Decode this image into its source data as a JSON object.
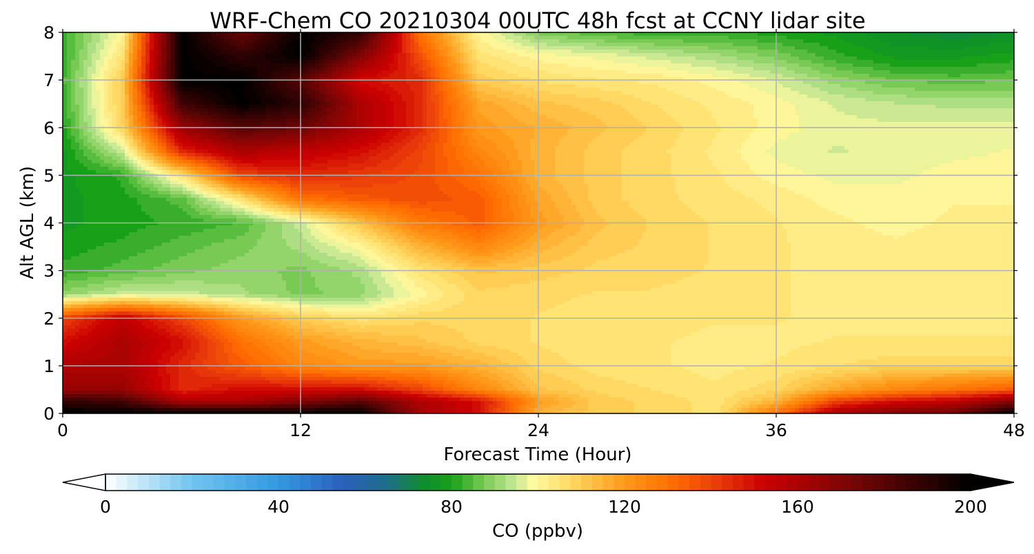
{
  "chart_data": {
    "type": "heatmap",
    "title": "WRF-Chem CO  20210304 00UTC 48h fcst at CCNY lidar site",
    "xlabel": "Forecast Time (Hour)",
    "ylabel": "Alt AGL (km)",
    "xlim": [
      0,
      48
    ],
    "ylim": [
      0,
      8
    ],
    "x_ticks": [
      "0",
      "12",
      "24",
      "36",
      "48"
    ],
    "y_ticks": [
      "0",
      "1",
      "2",
      "3",
      "4",
      "5",
      "6",
      "7",
      "8"
    ],
    "grid": true,
    "grid_x": [
      0,
      3,
      6,
      9,
      12,
      15,
      18,
      21,
      24,
      27,
      30,
      33,
      36,
      39,
      42,
      45,
      48
    ],
    "grid_y": [
      0,
      0.25,
      0.5,
      1,
      1.5,
      2,
      2.5,
      3,
      3.5,
      4,
      4.5,
      5,
      5.5,
      6,
      6.5,
      7,
      7.5,
      8
    ],
    "values": [
      [
        200,
        200,
        200,
        200,
        200,
        200,
        160,
        150,
        115,
        110,
        108,
        105,
        130,
        160,
        170,
        175,
        200
      ],
      [
        190,
        185,
        160,
        160,
        170,
        180,
        160,
        150,
        120,
        110,
        108,
        105,
        115,
        140,
        150,
        155,
        170
      ],
      [
        165,
        165,
        145,
        150,
        150,
        150,
        140,
        125,
        112,
        108,
        106,
        104,
        108,
        118,
        125,
        130,
        135
      ],
      [
        160,
        160,
        145,
        135,
        125,
        120,
        120,
        115,
        108,
        105,
        104,
        103,
        104,
        106,
        108,
        108,
        108
      ],
      [
        150,
        160,
        150,
        130,
        120,
        115,
        112,
        108,
        106,
        104,
        104,
        103,
        103,
        104,
        104,
        104,
        104
      ],
      [
        140,
        155,
        140,
        120,
        110,
        105,
        108,
        108,
        106,
        105,
        105,
        104,
        104,
        103,
        103,
        103,
        103
      ],
      [
        90,
        95,
        95,
        92,
        88,
        90,
        100,
        108,
        107,
        106,
        106,
        105,
        104,
        103,
        103,
        103,
        103
      ],
      [
        82,
        85,
        88,
        90,
        88,
        92,
        105,
        112,
        110,
        108,
        107,
        106,
        104,
        103,
        103,
        103,
        103
      ],
      [
        80,
        82,
        85,
        88,
        92,
        100,
        115,
        125,
        115,
        110,
        108,
        106,
        104,
        103,
        102,
        103,
        103
      ],
      [
        78,
        80,
        82,
        84,
        95,
        112,
        128,
        135,
        120,
        112,
        108,
        106,
        104,
        102,
        100,
        102,
        102
      ],
      [
        78,
        80,
        85,
        105,
        130,
        135,
        138,
        135,
        118,
        110,
        107,
        105,
        103,
        100,
        100,
        101,
        101
      ],
      [
        78,
        82,
        105,
        140,
        145,
        142,
        138,
        130,
        115,
        110,
        107,
        104,
        100,
        98,
        98,
        100,
        100
      ],
      [
        78,
        95,
        145,
        160,
        155,
        150,
        140,
        125,
        115,
        110,
        107,
        103,
        98,
        96,
        97,
        98,
        99
      ],
      [
        80,
        108,
        165,
        180,
        175,
        160,
        145,
        120,
        116,
        112,
        108,
        104,
        100,
        97,
        97,
        97,
        97
      ],
      [
        82,
        110,
        185,
        200,
        190,
        160,
        145,
        118,
        112,
        110,
        106,
        103,
        100,
        96,
        94,
        93,
        93
      ],
      [
        83,
        110,
        200,
        200,
        180,
        150,
        145,
        110,
        106,
        104,
        103,
        100,
        96,
        90,
        86,
        85,
        86
      ],
      [
        82,
        105,
        200,
        190,
        200,
        170,
        138,
        105,
        100,
        98,
        95,
        92,
        88,
        82,
        78,
        78,
        80
      ],
      [
        82,
        100,
        200,
        175,
        200,
        190,
        130,
        100,
        88,
        84,
        82,
        82,
        80,
        78,
        74,
        72,
        74
      ]
    ],
    "colorbar": {
      "label": "CO  (ppbv)",
      "range": [
        0,
        200
      ],
      "ticks": [
        "0",
        "40",
        "80",
        "120",
        "160",
        "200"
      ],
      "extend": "both",
      "stops": [
        {
          "v": 0,
          "c": "#ffffff"
        },
        {
          "v": 20,
          "c": "#70c4f0"
        },
        {
          "v": 40,
          "c": "#3399e0"
        },
        {
          "v": 55,
          "c": "#2a5fbd"
        },
        {
          "v": 65,
          "c": "#1f6e88"
        },
        {
          "v": 74,
          "c": "#0e8f2a"
        },
        {
          "v": 80,
          "c": "#19a019"
        },
        {
          "v": 87,
          "c": "#73c850"
        },
        {
          "v": 94,
          "c": "#bde58f"
        },
        {
          "v": 99,
          "c": "#fffaa0"
        },
        {
          "v": 108,
          "c": "#ffd760"
        },
        {
          "v": 120,
          "c": "#ff9a1a"
        },
        {
          "v": 132,
          "c": "#ff6a00"
        },
        {
          "v": 142,
          "c": "#e8390b"
        },
        {
          "v": 152,
          "c": "#cc0000"
        },
        {
          "v": 172,
          "c": "#7a0505"
        },
        {
          "v": 200,
          "c": "#000000"
        }
      ]
    }
  }
}
